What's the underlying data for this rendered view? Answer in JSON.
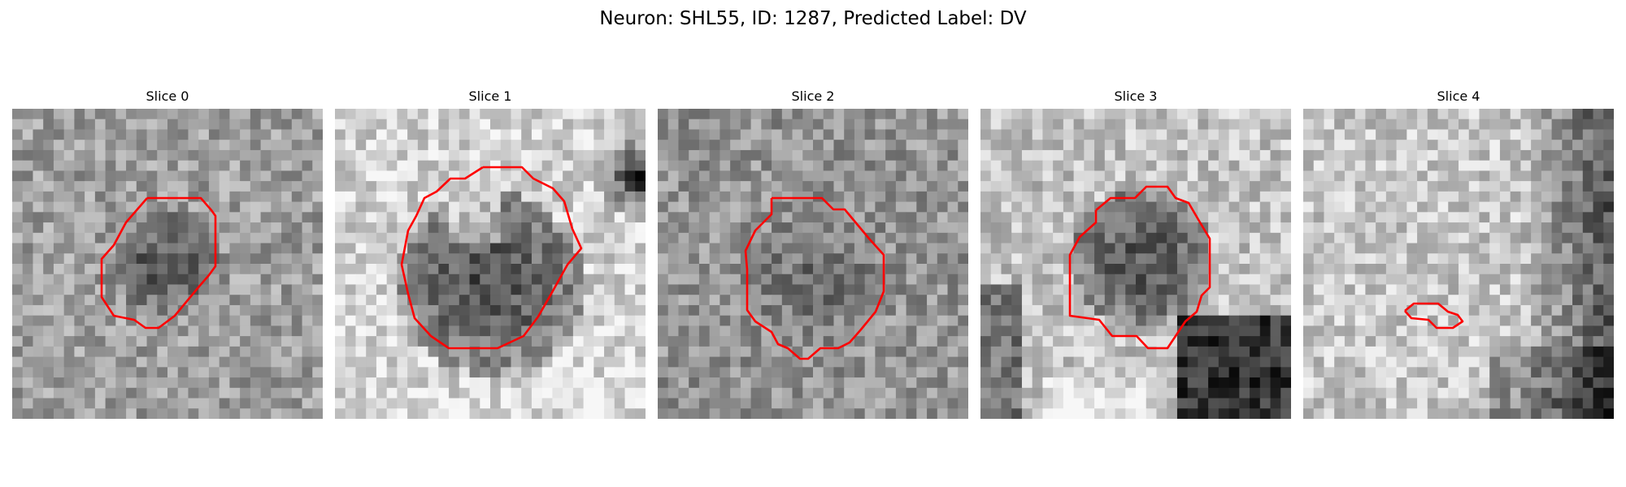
{
  "figure": {
    "title": "Neuron: SHL55, ID: 1287, Predicted Label: DV"
  },
  "panels": [
    {
      "title": "Slice 0"
    },
    {
      "title": "Slice 1"
    },
    {
      "title": "Slice 2"
    },
    {
      "title": "Slice 3"
    },
    {
      "title": "Slice 4"
    }
  ],
  "colors": {
    "contour": "#ff0000",
    "background": "#ffffff"
  }
}
